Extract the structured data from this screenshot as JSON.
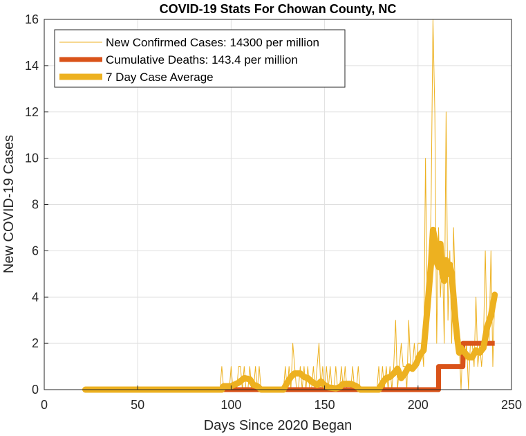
{
  "chart_data": {
    "type": "line",
    "title": "COVID-19 Stats For Chowan County, NC",
    "xlabel": "Days Since 2020 Began",
    "ylabel": "New COVID-19 Cases",
    "xlim": [
      0,
      250
    ],
    "ylim": [
      0,
      16
    ],
    "xticks": [
      0,
      50,
      100,
      150,
      200,
      250
    ],
    "yticks": [
      0,
      2,
      4,
      6,
      8,
      10,
      12,
      14,
      16
    ],
    "grid": true,
    "legend_position": "top-left",
    "series": [
      {
        "name": "New Confirmed Cases: 14300 per million",
        "color": "#EDB120",
        "style": "thin",
        "points": [
          [
            22,
            0
          ],
          [
            94,
            0
          ],
          [
            95,
            1
          ],
          [
            96,
            0
          ],
          [
            99,
            0
          ],
          [
            100,
            1
          ],
          [
            101,
            0
          ],
          [
            103,
            0
          ],
          [
            104,
            1
          ],
          [
            105,
            1
          ],
          [
            106,
            0
          ],
          [
            107,
            1
          ],
          [
            108,
            0
          ],
          [
            109,
            0
          ],
          [
            110,
            1
          ],
          [
            111,
            0
          ],
          [
            112,
            0
          ],
          [
            113,
            1
          ],
          [
            114,
            0
          ],
          [
            115,
            1
          ],
          [
            116,
            0
          ],
          [
            128,
            0
          ],
          [
            129,
            1
          ],
          [
            130,
            0
          ],
          [
            131,
            1
          ],
          [
            132,
            0
          ],
          [
            133,
            2
          ],
          [
            134,
            1
          ],
          [
            135,
            0
          ],
          [
            136,
            0
          ],
          [
            137,
            1
          ],
          [
            138,
            0
          ],
          [
            139,
            1
          ],
          [
            140,
            0
          ],
          [
            141,
            1
          ],
          [
            142,
            0
          ],
          [
            143,
            0
          ],
          [
            144,
            1
          ],
          [
            145,
            0
          ],
          [
            146,
            1
          ],
          [
            147,
            2
          ],
          [
            148,
            0
          ],
          [
            149,
            1
          ],
          [
            150,
            0
          ],
          [
            151,
            1
          ],
          [
            152,
            0
          ],
          [
            153,
            1
          ],
          [
            154,
            0
          ],
          [
            155,
            0
          ],
          [
            156,
            1
          ],
          [
            157,
            0
          ],
          [
            158,
            0
          ],
          [
            159,
            1
          ],
          [
            160,
            0
          ],
          [
            161,
            1
          ],
          [
            162,
            0
          ],
          [
            164,
            0
          ],
          [
            165,
            1
          ],
          [
            166,
            0
          ],
          [
            167,
            0
          ],
          [
            168,
            1
          ],
          [
            169,
            0
          ],
          [
            178,
            0
          ],
          [
            179,
            1
          ],
          [
            180,
            0
          ],
          [
            181,
            1
          ],
          [
            182,
            0
          ],
          [
            183,
            1
          ],
          [
            184,
            0
          ],
          [
            185,
            1
          ],
          [
            186,
            0
          ],
          [
            187,
            1
          ],
          [
            188,
            3
          ],
          [
            189,
            0
          ],
          [
            190,
            1
          ],
          [
            191,
            2
          ],
          [
            192,
            1
          ],
          [
            193,
            1
          ],
          [
            194,
            0
          ],
          [
            195,
            3
          ],
          [
            196,
            1
          ],
          [
            197,
            1
          ],
          [
            198,
            2
          ],
          [
            199,
            1
          ],
          [
            200,
            2
          ],
          [
            201,
            2
          ],
          [
            202,
            2
          ],
          [
            203,
            1
          ],
          [
            204,
            10
          ],
          [
            205,
            3
          ],
          [
            206,
            4
          ],
          [
            207,
            8
          ],
          [
            208,
            16
          ],
          [
            209,
            12
          ],
          [
            210,
            2
          ],
          [
            211,
            7
          ],
          [
            212,
            4
          ],
          [
            213,
            6
          ],
          [
            214,
            2
          ],
          [
            215,
            12
          ],
          [
            216,
            3
          ],
          [
            217,
            6
          ],
          [
            218,
            2
          ],
          [
            219,
            7
          ],
          [
            220,
            4
          ],
          [
            221,
            2
          ],
          [
            222,
            2
          ],
          [
            223,
            0
          ],
          [
            224,
            2
          ],
          [
            225,
            1
          ],
          [
            226,
            2
          ],
          [
            227,
            0
          ],
          [
            228,
            2
          ],
          [
            229,
            2
          ],
          [
            230,
            1
          ],
          [
            231,
            4
          ],
          [
            232,
            1
          ],
          [
            233,
            2
          ],
          [
            234,
            1
          ],
          [
            235,
            2
          ],
          [
            236,
            6
          ],
          [
            237,
            2
          ],
          [
            238,
            2
          ],
          [
            239,
            6
          ],
          [
            240,
            1
          ],
          [
            241,
            4
          ]
        ]
      },
      {
        "name": "Cumulative Deaths: 143.4 per million",
        "color": "#D95319",
        "style": "medium",
        "points": [
          [
            22,
            0
          ],
          [
            211,
            0
          ],
          [
            211,
            1
          ],
          [
            224,
            1
          ],
          [
            224,
            2
          ],
          [
            241,
            2
          ]
        ]
      },
      {
        "name": "7 Day Case Average",
        "color": "#EDB120",
        "style": "thick",
        "points": [
          [
            22,
            0
          ],
          [
            95,
            0
          ],
          [
            96,
            0.15
          ],
          [
            100,
            0.15
          ],
          [
            104,
            0.3
          ],
          [
            107,
            0.5
          ],
          [
            110,
            0.45
          ],
          [
            112,
            0.2
          ],
          [
            114,
            0.15
          ],
          [
            116,
            0
          ],
          [
            128,
            0
          ],
          [
            130,
            0.3
          ],
          [
            132,
            0.55
          ],
          [
            134,
            0.7
          ],
          [
            137,
            0.7
          ],
          [
            139,
            0.55
          ],
          [
            141,
            0.5
          ],
          [
            143,
            0.35
          ],
          [
            146,
            0.2
          ],
          [
            148,
            0.35
          ],
          [
            150,
            0.2
          ],
          [
            152,
            0.1
          ],
          [
            156,
            0.05
          ],
          [
            158,
            0.1
          ],
          [
            160,
            0.25
          ],
          [
            164,
            0.25
          ],
          [
            167,
            0.15
          ],
          [
            169,
            0
          ],
          [
            179,
            0
          ],
          [
            181,
            0.3
          ],
          [
            183,
            0.5
          ],
          [
            185,
            0.55
          ],
          [
            187,
            0.7
          ],
          [
            189,
            0.9
          ],
          [
            191,
            0.5
          ],
          [
            193,
            0.7
          ],
          [
            195,
            1.0
          ],
          [
            197,
            0.9
          ],
          [
            199,
            1.1
          ],
          [
            201,
            1.5
          ],
          [
            203,
            1.7
          ],
          [
            205,
            3.5
          ],
          [
            207,
            5.5
          ],
          [
            208,
            6.9
          ],
          [
            209,
            6.5
          ],
          [
            210,
            5.5
          ],
          [
            211,
            5.3
          ],
          [
            212,
            6.3
          ],
          [
            213,
            5.0
          ],
          [
            214,
            4.7
          ],
          [
            215,
            5.6
          ],
          [
            216,
            5.0
          ],
          [
            217,
            5.4
          ],
          [
            218,
            5.0
          ],
          [
            219,
            4.0
          ],
          [
            220,
            3.0
          ],
          [
            221,
            2.2
          ],
          [
            222,
            1.6
          ],
          [
            223,
            1.8
          ],
          [
            225,
            1.6
          ],
          [
            227,
            1.4
          ],
          [
            229,
            1.4
          ],
          [
            231,
            1.7
          ],
          [
            233,
            1.6
          ],
          [
            235,
            1.8
          ],
          [
            237,
            2.7
          ],
          [
            239,
            3.2
          ],
          [
            241,
            4.1
          ]
        ]
      }
    ]
  }
}
